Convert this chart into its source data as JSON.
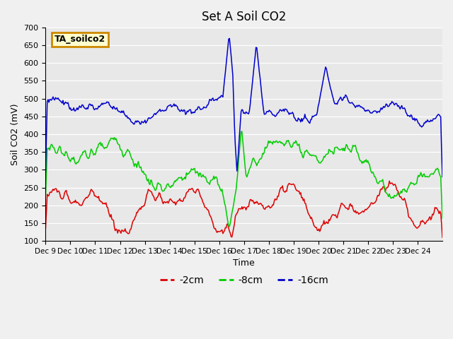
{
  "title": "Set A Soil CO2",
  "ylabel": "Soil CO2 (mV)",
  "xlabel": "Time",
  "ylim": [
    100,
    700
  ],
  "bg_color": "#e8e8e8",
  "fig_bg": "#f0f0f0",
  "annotation_text": "TA_soilco2",
  "annotation_bg": "#ffffcc",
  "annotation_border": "#cc8800",
  "xtick_labels": [
    "Dec 9",
    "Dec 10",
    "Dec 11",
    "Dec 12",
    "Dec 13",
    "Dec 14",
    "Dec 15",
    "Dec 16",
    "Dec 17",
    "Dec 18",
    "Dec 19",
    "Dec 20",
    "Dec 21",
    "Dec 22",
    "Dec 23",
    "Dec 24"
  ],
  "ytick_vals": [
    100,
    150,
    200,
    250,
    300,
    350,
    400,
    450,
    500,
    550,
    600,
    650,
    700
  ],
  "series": {
    "red": {
      "label": "-2cm",
      "color": "#dd0000"
    },
    "green": {
      "label": "-8cm",
      "color": "#00cc00"
    },
    "blue": {
      "label": "-16cm",
      "color": "#0000cc"
    }
  }
}
